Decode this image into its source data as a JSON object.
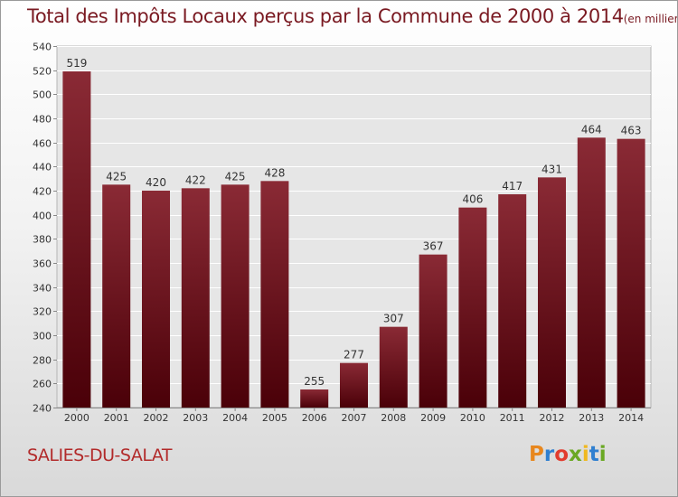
{
  "header": {
    "title": "Total des Impôts Locaux perçus par la Commune de 2000 à 2014",
    "unit": "(en milliers d'€)"
  },
  "footer": {
    "commune": "SALIES-DU-SALAT",
    "logo_text": "Proxiti",
    "logo_colors": [
      "#e8871e",
      "#2f7fd0",
      "#e23b2e",
      "#6aa823",
      "#f0b820",
      "#2f7fd0",
      "#6aa823"
    ]
  },
  "colors": {
    "bar_top": "#8a2a35",
    "bar_bottom": "#4a0008",
    "title": "#7a1a22",
    "commune": "#b22a2a"
  },
  "chart_data": {
    "type": "bar",
    "categories": [
      "2000",
      "2001",
      "2002",
      "2003",
      "2004",
      "2005",
      "2006",
      "2007",
      "2008",
      "2009",
      "2010",
      "2011",
      "2012",
      "2013",
      "2014"
    ],
    "values": [
      519,
      425,
      420,
      422,
      425,
      428,
      255,
      277,
      307,
      367,
      406,
      417,
      431,
      464,
      463
    ],
    "ylim": [
      240,
      540
    ],
    "yticks": [
      240,
      260,
      280,
      300,
      320,
      340,
      360,
      380,
      400,
      420,
      440,
      460,
      480,
      500,
      520,
      540
    ],
    "grid": true,
    "data_labels": true
  }
}
